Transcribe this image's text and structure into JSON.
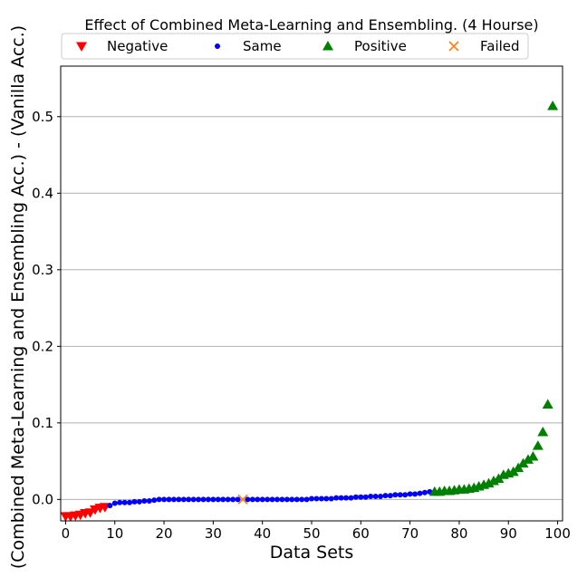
{
  "chart_data": {
    "type": "scatter",
    "title": "Effect of Combined Meta-Learning and Ensembling. (4 Hourse)",
    "xlabel": "Data Sets",
    "ylabel": "(Combined Meta-Learning and Ensembling Acc.) - (Vanilla Acc.)",
    "xlim": [
      -1,
      101
    ],
    "ylim": [
      -0.028,
      0.566
    ],
    "xticks": [
      0,
      10,
      20,
      30,
      40,
      50,
      60,
      70,
      80,
      90,
      100
    ],
    "xtick_labels": [
      "0",
      "10",
      "20",
      "30",
      "40",
      "50",
      "60",
      "70",
      "80",
      "90",
      "100"
    ],
    "yticks": [
      0.0,
      0.1,
      0.2,
      0.3,
      0.4,
      0.5
    ],
    "ytick_labels": [
      "0.0",
      "0.1",
      "0.2",
      "0.3",
      "0.4",
      "0.5"
    ],
    "grid": "horizontal",
    "legend_position": "top",
    "colors": {
      "negative": "#ff0000",
      "same": "#0000ff",
      "positive": "#008000",
      "failed": "#ff7f0e",
      "grid": "#b0b0b0"
    },
    "series": [
      {
        "name": "Negative",
        "marker": "triangle-down",
        "x": [
          0,
          1,
          2,
          3,
          4,
          5,
          6,
          7,
          8
        ],
        "y": [
          -0.022,
          -0.022,
          -0.021,
          -0.02,
          -0.018,
          -0.017,
          -0.013,
          -0.011,
          -0.01
        ]
      },
      {
        "name": "Same",
        "marker": "circle",
        "x": [
          9,
          10,
          11,
          12,
          13,
          14,
          15,
          16,
          17,
          18,
          19,
          20,
          21,
          22,
          23,
          24,
          25,
          26,
          27,
          28,
          29,
          30,
          31,
          32,
          33,
          34,
          35,
          37,
          38,
          39,
          40,
          41,
          42,
          43,
          44,
          45,
          46,
          47,
          48,
          49,
          50,
          51,
          52,
          53,
          54,
          55,
          56,
          57,
          58,
          59,
          60,
          61,
          62,
          63,
          64,
          65,
          66,
          67,
          68,
          69,
          70,
          71,
          72,
          73,
          74
        ],
        "y": [
          -0.008,
          -0.005,
          -0.004,
          -0.004,
          -0.004,
          -0.003,
          -0.003,
          -0.002,
          -0.002,
          -0.001,
          0.0,
          0.0,
          0.0,
          0.0,
          0.0,
          0.0,
          0.0,
          0.0,
          0.0,
          0.0,
          0.0,
          0.0,
          0.0,
          0.0,
          0.0,
          0.0,
          0.0,
          0.0,
          0.0,
          0.0,
          0.0,
          0.0,
          0.0,
          0.0,
          0.0,
          0.0,
          0.0,
          0.0,
          0.0,
          0.0,
          0.001,
          0.001,
          0.001,
          0.001,
          0.001,
          0.002,
          0.002,
          0.002,
          0.002,
          0.003,
          0.003,
          0.003,
          0.004,
          0.004,
          0.004,
          0.005,
          0.005,
          0.006,
          0.006,
          0.006,
          0.007,
          0.007,
          0.008,
          0.009,
          0.01
        ]
      },
      {
        "name": "Positive",
        "marker": "triangle-up",
        "x": [
          75,
          76,
          77,
          78,
          79,
          80,
          81,
          82,
          83,
          84,
          85,
          86,
          87,
          88,
          89,
          90,
          91,
          92,
          93,
          94,
          95,
          96,
          97,
          98,
          99
        ],
        "y": [
          0.01,
          0.01,
          0.011,
          0.011,
          0.012,
          0.013,
          0.013,
          0.014,
          0.015,
          0.017,
          0.019,
          0.021,
          0.024,
          0.027,
          0.032,
          0.034,
          0.036,
          0.041,
          0.047,
          0.052,
          0.056,
          0.07,
          0.088,
          0.124,
          0.514
        ]
      },
      {
        "name": "Failed",
        "marker": "x",
        "x": [
          36
        ],
        "y": [
          0.0
        ]
      }
    ]
  }
}
